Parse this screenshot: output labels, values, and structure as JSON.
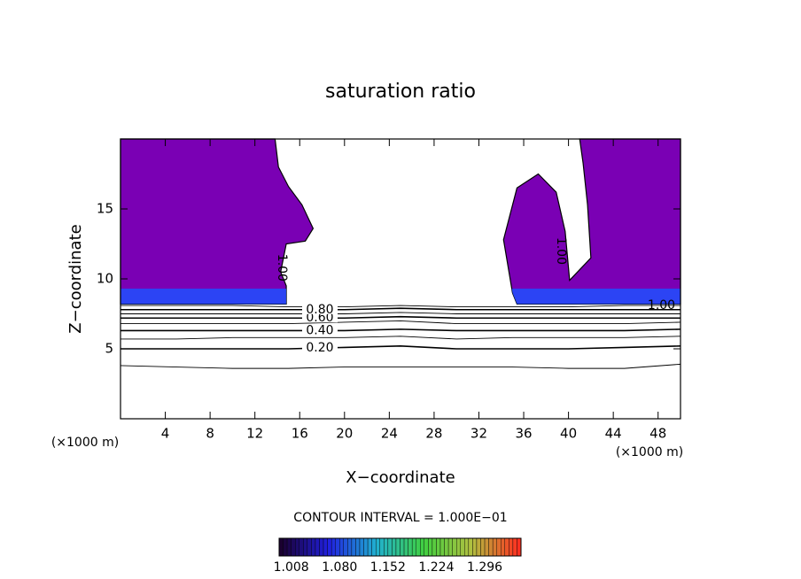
{
  "chart_data": {
    "type": "contour",
    "title": "saturation ratio",
    "x_label": "X−coordinate",
    "y_label": "Z−coordinate",
    "unit_labels": [
      "(×1000 m)",
      "(×1000 m)"
    ],
    "xlim": [
      0,
      50
    ],
    "ylim": [
      0,
      20
    ],
    "xticks": [
      4,
      8,
      12,
      16,
      20,
      24,
      28,
      32,
      36,
      40,
      44,
      48
    ],
    "yticks": [
      5,
      10,
      15
    ],
    "contours": {
      "x": [
        0,
        5,
        10,
        15,
        20,
        25,
        30,
        35,
        40,
        45,
        50
      ],
      "levels": [
        0.1,
        0.2,
        0.3,
        0.4,
        0.5,
        0.6,
        0.7,
        0.8,
        0.9
      ],
      "level_labels": [
        null,
        "0.20",
        null,
        "0.40",
        null,
        "0.60",
        null,
        "0.80",
        null
      ],
      "label_x": 17.8,
      "lines": [
        [
          3.8,
          3.7,
          3.6,
          3.6,
          3.7,
          3.7,
          3.7,
          3.7,
          3.6,
          3.6,
          3.9
        ],
        [
          5.0,
          5.0,
          5.0,
          5.0,
          5.1,
          5.2,
          5.0,
          5.0,
          5.0,
          5.1,
          5.2
        ],
        [
          5.7,
          5.7,
          5.8,
          5.8,
          5.8,
          5.9,
          5.7,
          5.8,
          5.8,
          5.8,
          5.9
        ],
        [
          6.3,
          6.3,
          6.3,
          6.3,
          6.3,
          6.4,
          6.3,
          6.3,
          6.3,
          6.3,
          6.4
        ],
        [
          6.8,
          6.8,
          6.8,
          6.8,
          6.9,
          7.0,
          6.8,
          6.8,
          6.8,
          6.8,
          6.9
        ],
        [
          7.2,
          7.2,
          7.2,
          7.2,
          7.2,
          7.3,
          7.2,
          7.2,
          7.2,
          7.2,
          7.2
        ],
        [
          7.5,
          7.5,
          7.5,
          7.5,
          7.5,
          7.6,
          7.5,
          7.5,
          7.5,
          7.5,
          7.5
        ],
        [
          7.8,
          7.8,
          7.8,
          7.8,
          7.8,
          7.9,
          7.8,
          7.8,
          7.8,
          7.8,
          7.8
        ],
        [
          8.1,
          8.1,
          8.1,
          8.0,
          8.0,
          8.1,
          8.0,
          8.0,
          8.0,
          8.1,
          8.1
        ]
      ]
    },
    "regions": [
      {
        "level": 1,
        "level_label": "1.00",
        "color": "#7a00b4",
        "label_x": 14.4,
        "label_y": 10.8,
        "vertical": true,
        "x": [
          0,
          14.8,
          14.8,
          14.3,
          14.8,
          16.5,
          17.2,
          16.2,
          15.0,
          14.1,
          13.8,
          0
        ],
        "y": [
          8.2,
          8.2,
          9.5,
          10.5,
          12.5,
          12.7,
          13.6,
          15.3,
          16.6,
          18.0,
          20,
          20
        ]
      },
      {
        "level": 1,
        "level_label": "1.00",
        "color": "#7a00b4",
        "label_x": 39.3,
        "label_y": 12.0,
        "vertical": true,
        "x": [
          35.4,
          50,
          50,
          41.0,
          41.3,
          41.7,
          42.0,
          40.1,
          39.7,
          38.9,
          37.3,
          35.4,
          34.2,
          35.0
        ],
        "y": [
          8.2,
          8.2,
          20,
          20,
          18.3,
          15.3,
          11.5,
          9.9,
          13.4,
          16.2,
          17.5,
          16.5,
          12.8,
          9.0
        ]
      }
    ],
    "edge_label": {
      "text": "1.00",
      "x": 48.3,
      "y": 8.1
    },
    "low_band": {
      "ylim": [
        8.2,
        9.3
      ],
      "color": "#1e50ff"
    },
    "contour_interval_label": "CONTOUR INTERVAL = 1.000E−01",
    "colorbar": {
      "lim": [
        0.99,
        1.35
      ],
      "colors": [
        "#1a0030",
        "#2020e0",
        "#20b0d0",
        "#40d040",
        "#b0c040",
        "#ff3020"
      ],
      "ticks": [
        1.008,
        {
          "value": 1.08,
          "label": "1.080"
        },
        1.152,
        1.224,
        1.296
      ]
    }
  }
}
